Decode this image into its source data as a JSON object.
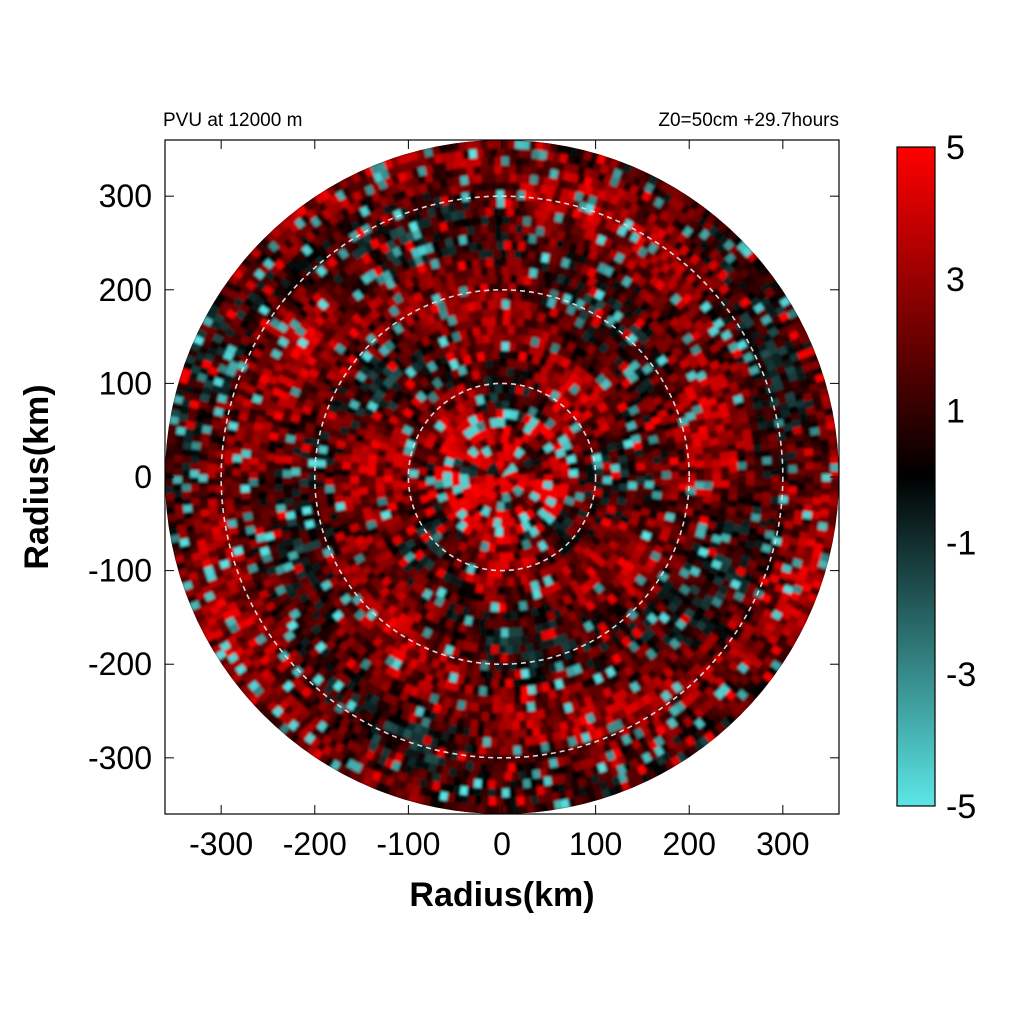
{
  "chart_data": {
    "type": "heatmap",
    "title_left": "PVU at 12000 m",
    "title_right": "Z0=50cm  +29.7hours",
    "xlabel": "Radius(km)",
    "ylabel": "Radius(km)",
    "xlim": [
      -360,
      360
    ],
    "ylim": [
      -360,
      360
    ],
    "x_ticks": [
      -300,
      -200,
      -100,
      0,
      100,
      200,
      300
    ],
    "y_ticks": [
      300,
      200,
      100,
      0,
      -100,
      -200,
      -300
    ],
    "domain_radius_km": 360,
    "reference_circles_km": [
      100,
      200,
      300
    ],
    "colorbar": {
      "min": -5,
      "max": 5,
      "tick_labels": [
        5,
        3,
        1,
        -1,
        -3,
        -5
      ],
      "colors": {
        "max": "#ff0000",
        "mid": "#000000",
        "min": "#5ce6e6"
      }
    },
    "grid": false
  }
}
